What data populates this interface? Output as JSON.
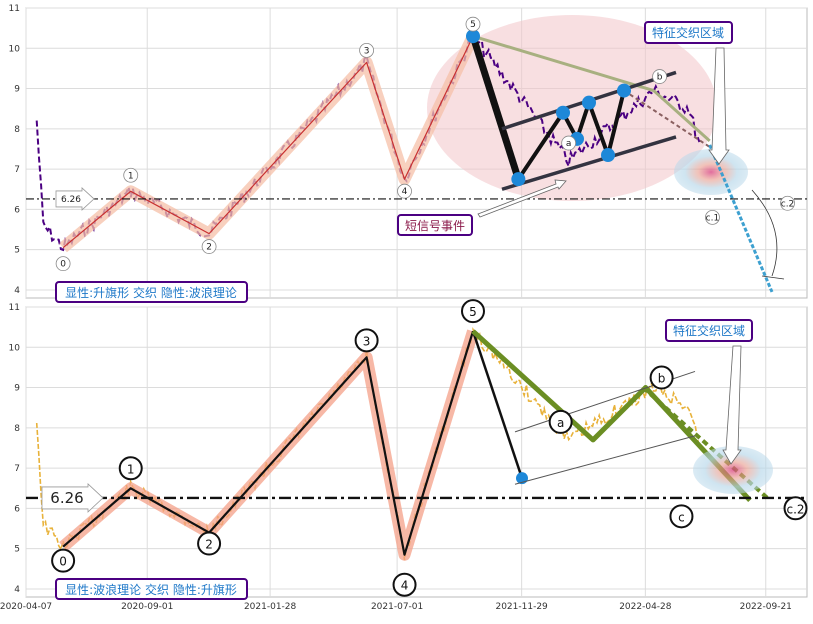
{
  "chart_data": [
    {
      "type": "line",
      "panel": "top",
      "ylim": [
        3.8,
        11
      ],
      "yticks": [
        4,
        5,
        6,
        7,
        8,
        9,
        10,
        11
      ],
      "xlim": [
        "2020-04-07",
        "2022-11-10"
      ],
      "grid": true,
      "reference_line": {
        "value": 6.26,
        "label": "6.26"
      },
      "price_color": "#4b0082",
      "waves": [
        {
          "label": "0",
          "date": "2020-05-22",
          "value": 5.05
        },
        {
          "label": "1",
          "date": "2020-08-12",
          "value": 6.45
        },
        {
          "label": "2",
          "date": "2020-11-15",
          "value": 5.4
        },
        {
          "label": "3",
          "date": "2021-05-25",
          "value": 9.65
        },
        {
          "label": "4",
          "date": "2021-07-10",
          "value": 6.75
        },
        {
          "label": "5",
          "date": "2021-10-01",
          "value": 10.3
        }
      ],
      "sub_waves": [
        {
          "label": "a",
          "date": "2022-01-25",
          "value": 7.2
        },
        {
          "label": "b",
          "date": "2022-05-08",
          "value": 8.95
        },
        {
          "label": "c.1",
          "date": "2022-07-22",
          "value": 6.1
        },
        {
          "label": "c.2",
          "date": "2022-09-28",
          "value": 6.4
        }
      ],
      "annotations": {
        "signal_event": "短信号事件",
        "feature_zone": "特征交织区域",
        "summary": "显性:升旗形 交织 隐性:波浪理论"
      },
      "colors": {
        "zone": "#f4c8cc",
        "channel": "#333340",
        "marker": "#1e88d8",
        "forecast": "#3da0d0",
        "summary_border": "#4b0082",
        "summary_text": "#1e78c8",
        "signal_text": "#8b1a4a"
      }
    },
    {
      "type": "line",
      "panel": "bottom",
      "ylim": [
        3.8,
        11
      ],
      "yticks": [
        4,
        5,
        6,
        7,
        8,
        9,
        10,
        11
      ],
      "xticks": [
        "2020-04-07",
        "2020-09-01",
        "2021-01-28",
        "2021-07-01",
        "2021-11-29",
        "2022-04-28",
        "2022-09-21"
      ],
      "grid": true,
      "reference_line": {
        "value": 6.26,
        "label": "6.26"
      },
      "price_color": "#e8b23a",
      "waves": [
        {
          "label": "0",
          "date": "2020-05-22",
          "value": 5.05
        },
        {
          "label": "1",
          "date": "2020-08-12",
          "value": 6.5
        },
        {
          "label": "2",
          "date": "2020-11-15",
          "value": 5.4
        },
        {
          "label": "3",
          "date": "2021-05-25",
          "value": 9.75
        },
        {
          "label": "4",
          "date": "2021-07-10",
          "value": 4.85
        },
        {
          "label": "5",
          "date": "2021-10-01",
          "value": 10.4
        }
      ],
      "sub_waves": [
        {
          "label": "a",
          "date": "2022-01-25",
          "value": 7.7
        },
        {
          "label": "b",
          "date": "2022-05-08",
          "value": 9.0
        },
        {
          "label": "c",
          "date": "2022-07-22",
          "value": 6.25
        },
        {
          "label": "c.2",
          "date": "2022-09-28",
          "value": 6.35
        }
      ],
      "annotations": {
        "feature_zone": "特征交织区域",
        "summary": "显性:波浪理论 交织 隐性:升旗形"
      },
      "colors": {
        "wave_fill": "#f4a088",
        "abc": "#6b8e23",
        "marker": "#1e88d8",
        "summary_border": "#4b0082",
        "summary_text": "#1e78c8"
      }
    }
  ]
}
